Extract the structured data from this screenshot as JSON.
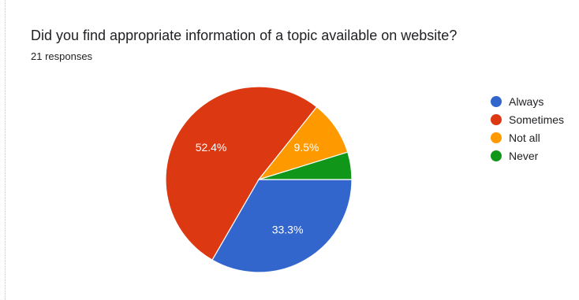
{
  "form": {
    "question": "Did you find appropriate information of a topic available on website?",
    "responses_label": "21 responses"
  },
  "chart_data": {
    "type": "pie",
    "title": "Did you find appropriate information of a topic available on website?",
    "total_responses": 21,
    "slices": [
      {
        "name": "Always",
        "value": 7,
        "percent": 33.3,
        "label": "33.3%",
        "color": "#3366cc"
      },
      {
        "name": "Sometimes",
        "value": 11,
        "percent": 52.4,
        "label": "52.4%",
        "color": "#dc3912"
      },
      {
        "name": "Not all",
        "value": 2,
        "percent": 9.5,
        "label": "9.5%",
        "color": "#ff9900"
      },
      {
        "name": "Never",
        "value": 1,
        "percent": 4.8,
        "label": "",
        "color": "#109618"
      }
    ],
    "legend_position": "right",
    "start_angle": "3 o'clock",
    "direction": "clockwise"
  }
}
